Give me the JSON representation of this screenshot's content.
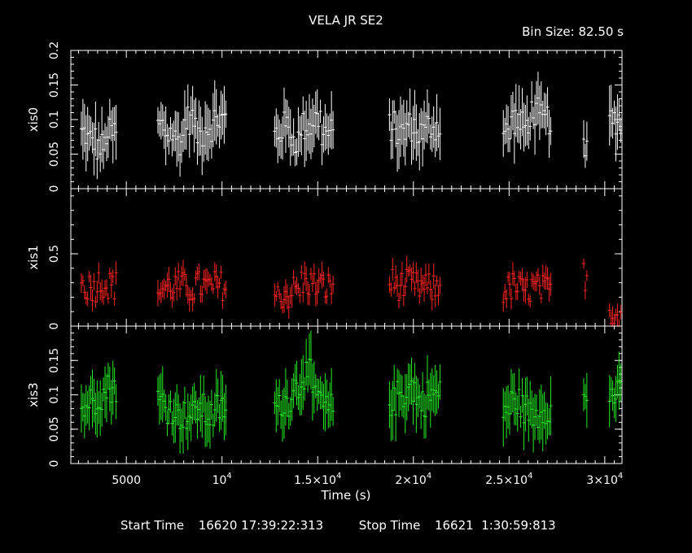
{
  "header": {
    "title": "VELA JR SE2",
    "bin_size": "Bin Size: 82.50 s"
  },
  "footer": {
    "start_label": "Start Time",
    "start_value": "16620 17:39:22:313",
    "stop_label": "Stop Time",
    "stop_value": "16621  1:30:59:813"
  },
  "chart_data": {
    "type": "scatter",
    "title": "VELA JR SE2",
    "xlabel": "Time (s)",
    "xlim": [
      2100,
      30900
    ],
    "x_ticks": [
      {
        "value": 5000,
        "label": "5000"
      },
      {
        "value": 10000,
        "label": "10",
        "sup": "4"
      },
      {
        "value": 15000,
        "label": "1.5×10",
        "sup": "4"
      },
      {
        "value": 20000,
        "label": "2×10",
        "sup": "4"
      },
      {
        "value": 25000,
        "label": "2.5×10",
        "sup": "4"
      },
      {
        "value": 30000,
        "label": "3×10",
        "sup": "4"
      }
    ],
    "segments": [
      [
        2650,
        4500
      ],
      [
        6650,
        10200
      ],
      [
        12750,
        15850
      ],
      [
        18750,
        21400
      ],
      [
        24700,
        27200
      ],
      [
        28900,
        29100
      ],
      [
        30250,
        30900
      ]
    ],
    "bin_size": 82.5,
    "panels": [
      {
        "name": "xis0",
        "color": "#ffffff",
        "ylim": [
          0,
          0.2
        ],
        "y_ticks": [
          0,
          0.05,
          0.1,
          0.15,
          0.2
        ],
        "y_tick_labels": [
          "0",
          "0.05",
          "0.1",
          "0.15",
          "0.2"
        ],
        "series": [
          {
            "x": [
              2700,
              3200,
              3700,
              4200,
              6800,
              7300,
              7800,
              8300,
              8800,
              9300,
              9800,
              12900,
              13400,
              13900,
              14400,
              14900,
              15400,
              18900,
              19400,
              19900,
              20400,
              20900,
              24800,
              25300,
              25800,
              26300,
              26800,
              29000,
              30600
            ],
            "y": [
              0.08,
              0.07,
              0.06,
              0.08,
              0.09,
              0.08,
              0.07,
              0.1,
              0.08,
              0.09,
              0.1,
              0.08,
              0.09,
              0.07,
              0.09,
              0.1,
              0.08,
              0.09,
              0.08,
              0.09,
              0.08,
              0.09,
              0.08,
              0.1,
              0.09,
              0.11,
              0.1,
              0.05,
              0.1
            ]
          }
        ]
      },
      {
        "name": "xis1",
        "color": "#ff2222",
        "ylim": [
          0,
          0.95
        ],
        "y_ticks": [
          0,
          0.5
        ],
        "y_tick_labels": [
          "0",
          "0.5"
        ],
        "series": [
          {
            "x": [
              2700,
              3200,
              3700,
              4200,
              6800,
              7300,
              7800,
              8300,
              8800,
              9300,
              9800,
              12900,
              13400,
              13900,
              14400,
              14900,
              15400,
              18900,
              19400,
              19900,
              20400,
              20900,
              24800,
              25300,
              25800,
              26300,
              26800,
              29000,
              30600
            ],
            "y": [
              0.28,
              0.27,
              0.3,
              0.28,
              0.26,
              0.27,
              0.28,
              0.26,
              0.28,
              0.27,
              0.28,
              0.2,
              0.22,
              0.25,
              0.3,
              0.28,
              0.27,
              0.3,
              0.28,
              0.29,
              0.27,
              0.26,
              0.25,
              0.27,
              0.24,
              0.26,
              0.25,
              0.35,
              0.1
            ]
          }
        ]
      },
      {
        "name": "xis3",
        "color": "#22ee22",
        "ylim": [
          0,
          0.2
        ],
        "y_ticks": [
          0,
          0.05,
          0.1,
          0.15
        ],
        "y_tick_labels": [
          "0",
          "0.05",
          "0.1",
          "0.15"
        ],
        "series": [
          {
            "x": [
              2700,
              3200,
              3700,
              4200,
              6800,
              7300,
              7800,
              8300,
              8800,
              9300,
              9800,
              12900,
              13400,
              13900,
              14400,
              14900,
              15400,
              18900,
              19400,
              19900,
              20400,
              20900,
              24800,
              25300,
              25800,
              26300,
              26800,
              29000,
              30600
            ],
            "y": [
              0.08,
              0.09,
              0.1,
              0.11,
              0.09,
              0.08,
              0.07,
              0.07,
              0.08,
              0.07,
              0.08,
              0.08,
              0.09,
              0.11,
              0.13,
              0.1,
              0.08,
              0.09,
              0.1,
              0.11,
              0.09,
              0.1,
              0.08,
              0.09,
              0.08,
              0.07,
              0.08,
              0.09,
              0.1
            ]
          }
        ]
      }
    ]
  }
}
